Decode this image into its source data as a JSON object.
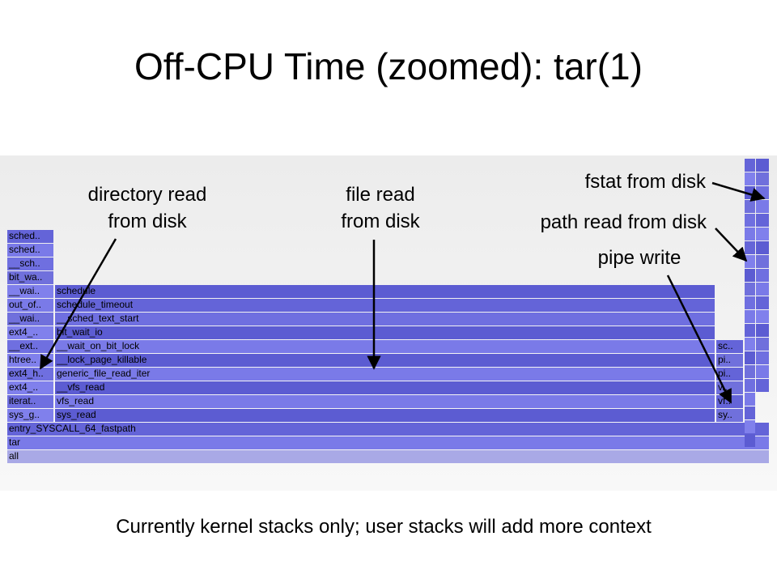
{
  "title": "Off-CPU Time (zoomed): tar(1)",
  "annotations": [
    {
      "lines": [
        "directory read",
        "from disk"
      ]
    },
    {
      "lines": [
        "file read",
        "from disk"
      ]
    },
    {
      "lines": [
        "fstat from disk"
      ]
    },
    {
      "lines": [
        "path read from disk"
      ]
    },
    {
      "lines": [
        "pipe write"
      ]
    }
  ],
  "frames": [
    {
      "label": "all"
    },
    {
      "label": "tar"
    },
    {
      "label": "entry_SYSCALL_64_fastpath"
    },
    {
      "label": "sys_g.."
    },
    {
      "label": "sys_read"
    },
    {
      "label": "sy.."
    },
    {
      "label": "iterat.."
    },
    {
      "label": "vfs_read"
    },
    {
      "label": "vf.."
    },
    {
      "label": "ext4_.."
    },
    {
      "label": "__vfs_read"
    },
    {
      "label": "v.."
    },
    {
      "label": "ext4_h.."
    },
    {
      "label": "generic_file_read_iter"
    },
    {
      "label": "pi.."
    },
    {
      "label": "htree.."
    },
    {
      "label": "__lock_page_killable"
    },
    {
      "label": "pi.."
    },
    {
      "label": "__ext.."
    },
    {
      "label": "__wait_on_bit_lock"
    },
    {
      "label": "sc.."
    },
    {
      "label": "ext4_.."
    },
    {
      "label": "bit_wait_io"
    },
    {
      "label": "__wai.."
    },
    {
      "label": "__sched_text_start"
    },
    {
      "label": "out_of.."
    },
    {
      "label": "schedule_timeout"
    },
    {
      "label": "__wai.."
    },
    {
      "label": "schedule"
    },
    {
      "label": "bit_wa.."
    },
    {
      "label": "__sch.."
    },
    {
      "label": "sched.."
    },
    {
      "label": "sched.."
    }
  ],
  "footer": "Currently kernel stacks only; user stacks will add more context"
}
